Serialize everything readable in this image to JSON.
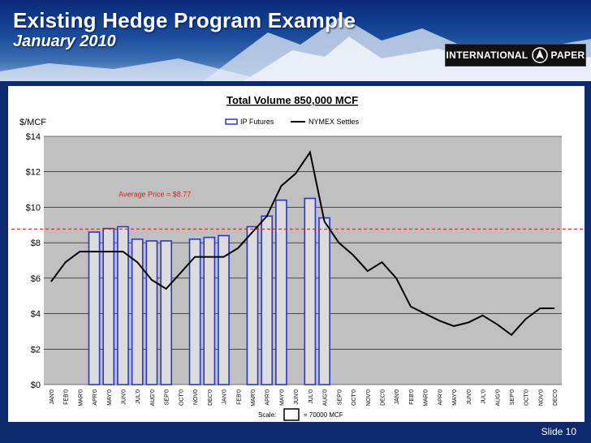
{
  "slide": {
    "title": "Existing Hedge Program Example",
    "subtitle": "January 2010",
    "logo_left": "INTERNATIONAL",
    "logo_right": "PAPER",
    "slide_number": "Slide 10"
  },
  "chart_data": {
    "type": "bar",
    "title": "Total Volume 850,000 MCF",
    "ylabel": "$/MCF",
    "ylim": [
      0,
      14
    ],
    "yticks": [
      "$0",
      "$2",
      "$4",
      "$6",
      "$8",
      "$10",
      "$12",
      "$14"
    ],
    "yticks_values": [
      0,
      2,
      4,
      6,
      8,
      10,
      12,
      14
    ],
    "grid": true,
    "legend_position": "top",
    "categories": [
      "JAN'0",
      "FEB'0",
      "MAR'0",
      "APR'0",
      "MAY'0",
      "JUN'0",
      "JUL'0",
      "AUG'0",
      "SEP'0",
      "OCT'0",
      "NOV0",
      "DEC'0",
      "JAN'0",
      "FEB'0",
      "MAR'0",
      "APR'0",
      "MAY'0",
      "JUN'0",
      "JUL'0",
      "AUG'0",
      "SEP'0",
      "OCT'0",
      "NOV'0",
      "DEC'0",
      "JAN'0",
      "FEB'0",
      "MAR'0",
      "APR'0",
      "MAY'0",
      "JUN'0",
      "JUL'0",
      "AUG'0",
      "SEP'0",
      "OCT'0",
      "NOV'0",
      "DEC'0"
    ],
    "series": [
      {
        "name": "IP Futures",
        "kind": "bar",
        "color": "#2a37c8",
        "values": [
          null,
          null,
          null,
          8.6,
          8.8,
          8.9,
          8.2,
          8.1,
          8.1,
          null,
          8.2,
          8.3,
          8.4,
          null,
          8.9,
          9.5,
          10.4,
          null,
          10.5,
          9.4,
          null,
          null,
          null,
          null,
          null,
          null,
          null,
          null,
          null,
          null,
          null,
          null,
          null,
          null,
          null,
          null
        ]
      },
      {
        "name": "NYMEX Settles",
        "kind": "line",
        "color": "#000000",
        "values": [
          5.8,
          6.9,
          7.5,
          7.5,
          7.5,
          7.5,
          6.9,
          5.9,
          5.4,
          6.3,
          7.2,
          7.2,
          7.2,
          7.7,
          8.6,
          9.5,
          11.2,
          11.9,
          13.1,
          9.2,
          8.0,
          7.3,
          6.4,
          6.9,
          6.0,
          4.4,
          4.0,
          3.6,
          3.3,
          3.5,
          3.9,
          3.4,
          2.8,
          3.7,
          4.3,
          4.3
        ]
      }
    ],
    "average_line": {
      "value": 8.77,
      "label": "Average Price = $8.77",
      "color": "#d62020"
    },
    "scale_note": {
      "prefix": "Scale:",
      "suffix": "= 70000 MCF"
    }
  }
}
